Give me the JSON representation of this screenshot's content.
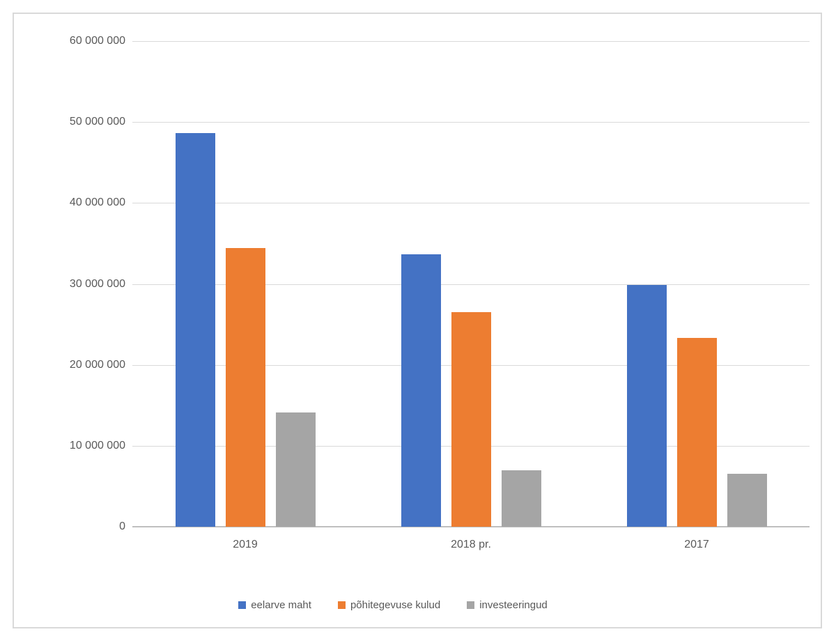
{
  "chart_data": {
    "type": "bar",
    "categories": [
      "2019",
      "2018 pr.",
      "2017"
    ],
    "series": [
      {
        "name": "eelarve maht",
        "color": "#4472C4",
        "values": [
          48600000,
          33700000,
          29900000
        ]
      },
      {
        "name": "põhitegevuse kulud",
        "color": "#ED7D31",
        "values": [
          34400000,
          26500000,
          23300000
        ]
      },
      {
        "name": "investeeringud",
        "color": "#A5A5A5",
        "values": [
          14100000,
          7000000,
          6500000
        ]
      }
    ],
    "title": "",
    "xlabel": "",
    "ylabel": "",
    "ylim": [
      0,
      60000000
    ],
    "ytick_interval": 10000000,
    "ytick_labels": [
      "0",
      "10 000 000",
      "20 000 000",
      "30 000 000",
      "40 000 000",
      "50 000 000",
      "60 000 000"
    ],
    "grid": true,
    "legend_position": "bottom",
    "colors": {
      "axis_text": "#595959",
      "gridline": "#D9D9D9",
      "axis_line": "#BFBFBF",
      "frame_border": "#D9D9D9",
      "background": "#FFFFFF"
    }
  }
}
